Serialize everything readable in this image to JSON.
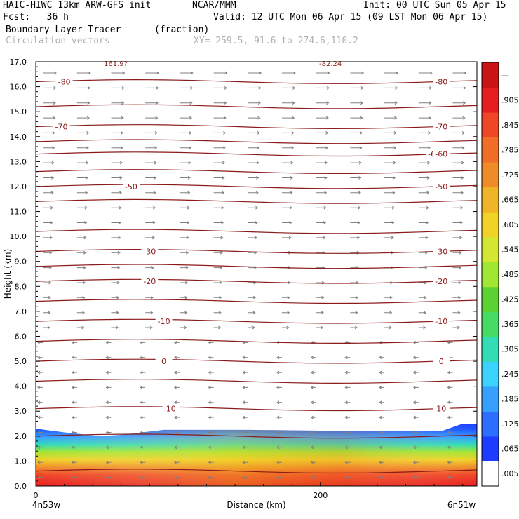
{
  "header": {
    "model": "HAIC-HIWC 13km ARW-GFS init",
    "org": "NCAR/MMM",
    "init": "Init: 00 UTC Sun 05 Apr 15",
    "fcst": "Fcst:   36 h",
    "valid": "Valid: 12 UTC Mon 06 Apr 15 (09 LST Mon 06 Apr 15)",
    "field": "Boundary Layer Tracer",
    "units": "(fraction)",
    "vectors": "Circulation vectors",
    "xy": "XY= 259.5, 91.6 to 274.6,110.2"
  },
  "chart_data": {
    "type": "heatmap",
    "title": "Boundary Layer Tracer",
    "units": "(fraction)",
    "xlabel": "Distance (km)",
    "ylabel": "Height (km)",
    "xlim": [
      0,
      310
    ],
    "ylim": [
      0,
      17
    ],
    "x_ticks": [
      {
        "v": 0,
        "t": "0"
      },
      {
        "v": 200,
        "t": "200"
      }
    ],
    "x_end_labels": {
      "left": "4n53w",
      "right": "6n51w"
    },
    "y_ticks": [
      "0.0",
      "1.0",
      "2.0",
      "3.0",
      "4.0",
      "5.0",
      "6.0",
      "7.0",
      "8.0",
      "9.0",
      "10.0",
      "11.0",
      "12.0",
      "13.0",
      "14.0",
      "15.0",
      "16.0",
      "17.0"
    ],
    "colorbar": {
      "labels": [
        ".005",
        ".065",
        ".125",
        ".185",
        ".245",
        ".305",
        ".365",
        ".425",
        ".485",
        ".545",
        ".605",
        ".665",
        ".725",
        ".785",
        ".845",
        ".905",
        "—"
      ],
      "colors": [
        "#ffffff",
        "#1e3cff",
        "#2d6eff",
        "#37a0ff",
        "#3cd2ff",
        "#32dcb4",
        "#46dc64",
        "#5ad232",
        "#a0e632",
        "#d2e632",
        "#f0d228",
        "#f0b428",
        "#f08c28",
        "#f06e28",
        "#f04628",
        "#e61e1e",
        "#c81414"
      ]
    },
    "tracer_top_km": [
      {
        "x": 0,
        "h": 2.3
      },
      {
        "x": 20,
        "h": 2.15
      },
      {
        "x": 45,
        "h": 2.0
      },
      {
        "x": 60,
        "h": 2.05
      },
      {
        "x": 90,
        "h": 2.25
      },
      {
        "x": 150,
        "h": 2.25
      },
      {
        "x": 230,
        "h": 2.2
      },
      {
        "x": 285,
        "h": 2.2
      },
      {
        "x": 300,
        "h": 2.5
      },
      {
        "x": 310,
        "h": 2.5
      }
    ],
    "temperature_isotherms": [
      {
        "label": "-80",
        "h": 16.2,
        "x": 20
      },
      {
        "label": "-70",
        "h": 14.4,
        "x": 18
      },
      {
        "label": "-60",
        "h": 13.3,
        "x": 280
      },
      {
        "label": "-50",
        "h": 12.0,
        "x": 67
      },
      {
        "label": "-30",
        "h": 9.4,
        "x": 80
      },
      {
        "label": "-20",
        "h": 8.2,
        "x": 80
      },
      {
        "label": "-10",
        "h": 6.6,
        "x": 90
      },
      {
        "label": "0",
        "h": 5.0,
        "x": 90
      },
      {
        "label": "10",
        "h": 3.1,
        "x": 95
      }
    ],
    "right_isotherm_labels": [
      "-80",
      "-70",
      "-60",
      "-50",
      "-30",
      "-20",
      "-10",
      "0",
      "10"
    ],
    "extra_isotherm_heights_km": [
      15.2,
      13.8,
      12.6,
      11.4,
      10.2,
      8.8,
      7.4,
      5.8,
      4.2,
      2.0,
      0.6
    ],
    "top_labels": [
      "161.9?",
      "-82.24"
    ],
    "wind": "westerly aloft, easterly below ~6 km"
  }
}
